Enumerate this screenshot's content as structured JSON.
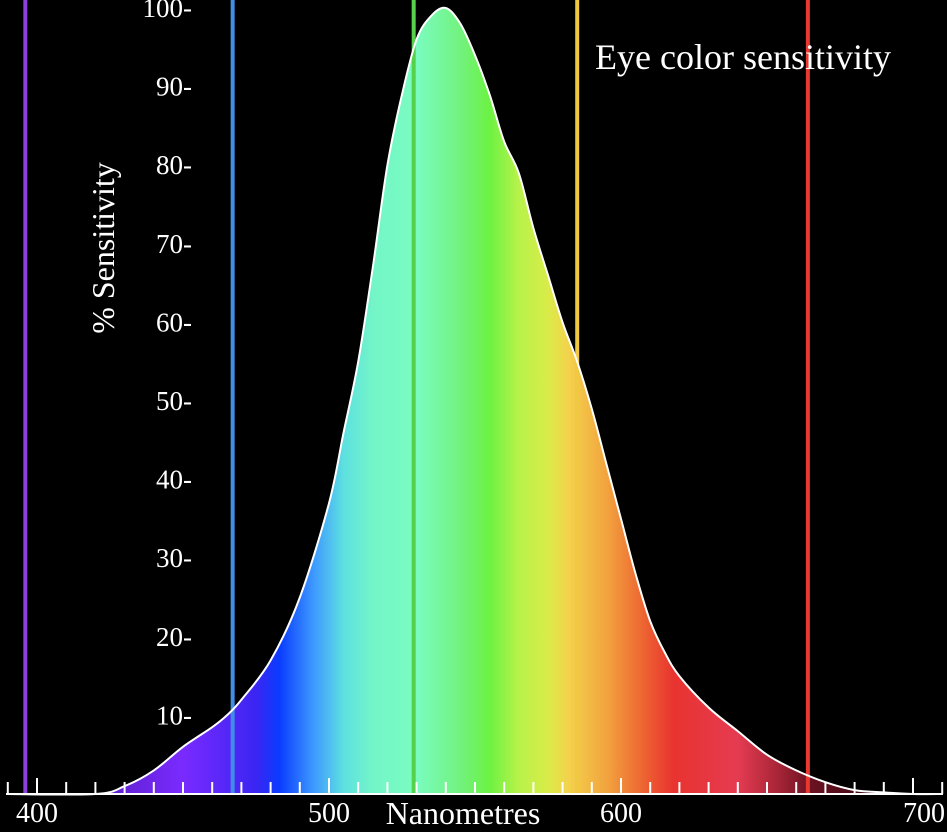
{
  "chart_data": {
    "type": "area",
    "title": "Eye color sensitivity",
    "xlabel": "Nanometres",
    "ylabel": "% Sensitivity",
    "xlim": [
      400,
      700
    ],
    "ylim": [
      0,
      100
    ],
    "x_ticks": [
      {
        "value": 400,
        "label": "400"
      },
      {
        "value": 500,
        "label": "500"
      },
      {
        "value": 600,
        "label": "600"
      },
      {
        "value": 700,
        "label": "700"
      }
    ],
    "y_ticks": [
      {
        "value": 10,
        "label": "10-"
      },
      {
        "value": 20,
        "label": "20-"
      },
      {
        "value": 30,
        "label": "30-"
      },
      {
        "value": 40,
        "label": "40-"
      },
      {
        "value": 50,
        "label": "50-"
      },
      {
        "value": 60,
        "label": "60-"
      },
      {
        "value": 70,
        "label": "70-"
      },
      {
        "value": 80,
        "label": "80-"
      },
      {
        "value": 90,
        "label": "90-"
      },
      {
        "value": 100,
        "label": "100-"
      }
    ],
    "minor_tick_step": 10,
    "curve": {
      "x": [
        420,
        430,
        440,
        450,
        460,
        465,
        470,
        480,
        490,
        500,
        505,
        510,
        515,
        520,
        525,
        530,
        535,
        540,
        545,
        550,
        555,
        560,
        565,
        570,
        575,
        580,
        585,
        590,
        595,
        600,
        605,
        610,
        615,
        620,
        630,
        640,
        650,
        660,
        670,
        680,
        690,
        700
      ],
      "y": [
        0,
        1,
        3,
        6,
        8.5,
        10,
        12,
        17,
        25,
        37,
        46,
        55,
        67,
        80,
        89,
        96,
        99,
        100,
        98,
        94,
        89,
        83,
        79,
        72,
        66,
        60,
        55,
        49,
        42,
        35,
        28,
        22,
        18,
        15,
        11,
        8,
        5,
        3,
        1.5,
        0.5,
        0.2,
        0
      ]
    },
    "vertical_lines": [
      {
        "x": 396,
        "color": "#8d3fe0"
      },
      {
        "x": 467,
        "color": "#3f8fe6"
      },
      {
        "x": 529,
        "color": "#55d14b"
      },
      {
        "x": 585,
        "color": "#f0c841"
      },
      {
        "x": 664,
        "color": "#e8382f"
      }
    ],
    "gradient": [
      {
        "x": 420,
        "color": "#5a1fc4"
      },
      {
        "x": 450,
        "color": "#7a2aff"
      },
      {
        "x": 475,
        "color": "#3b25f2"
      },
      {
        "x": 483,
        "color": "#0a3cff"
      },
      {
        "x": 495,
        "color": "#3f9bff"
      },
      {
        "x": 505,
        "color": "#5de0e0"
      },
      {
        "x": 515,
        "color": "#73f5c8"
      },
      {
        "x": 530,
        "color": "#7afcc0"
      },
      {
        "x": 545,
        "color": "#72f27e"
      },
      {
        "x": 555,
        "color": "#6cf243"
      },
      {
        "x": 565,
        "color": "#b8f24a"
      },
      {
        "x": 575,
        "color": "#d9ec48"
      },
      {
        "x": 582,
        "color": "#f4d24c"
      },
      {
        "x": 595,
        "color": "#f2a43e"
      },
      {
        "x": 610,
        "color": "#ec5930"
      },
      {
        "x": 618,
        "color": "#e8332f"
      },
      {
        "x": 640,
        "color": "#e53b52"
      },
      {
        "x": 652,
        "color": "#b0283a"
      },
      {
        "x": 665,
        "color": "#6a1222"
      },
      {
        "x": 700,
        "color": "#200008"
      }
    ],
    "grid": false,
    "legend": "none"
  }
}
